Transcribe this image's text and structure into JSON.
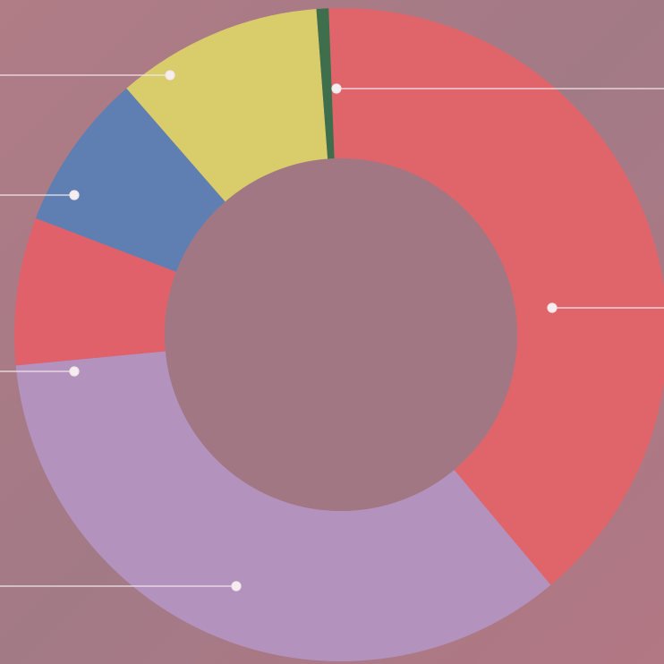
{
  "chart_data": {
    "type": "donut",
    "values": [
      39.5,
      34.6,
      7.3,
      7.8,
      10.2,
      0.6
    ],
    "colors": [
      "#e0656a",
      "#b392bd",
      "#e0616a",
      "#5f7fb2",
      "#d9cc6a",
      "#3f6e4d"
    ]
  }
}
